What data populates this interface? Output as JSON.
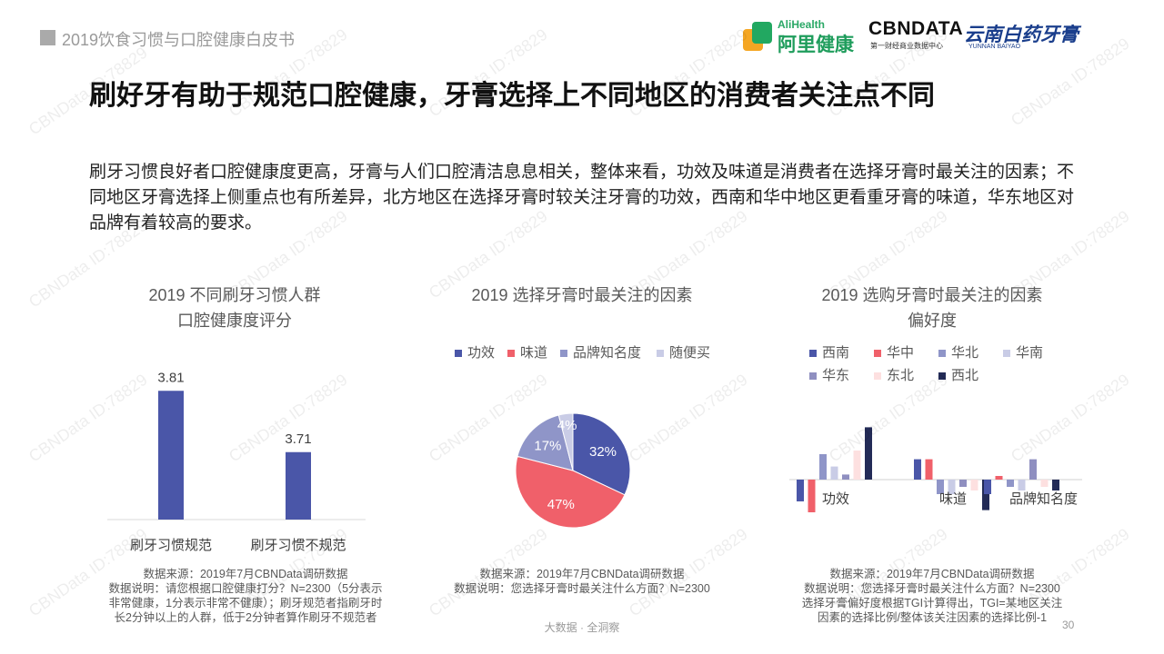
{
  "header": {
    "report_title": "2019饮食习惯与口腔健康白皮书"
  },
  "logos": {
    "alihealth_en": "AliHealth",
    "alihealth_cn": "阿里健康",
    "cbndata": "CBNDATA",
    "cbndata_sub": "第一财经商业数据中心",
    "yunnan": "云南白药牙膏",
    "yunnan_sub": "YUNNAN BAIYAO"
  },
  "slide": {
    "title": "刷好牙有助于规范口腔健康，牙膏选择上不同地区的消费者关注点不同",
    "intro": "刷牙习惯良好者口腔健康度更高，牙膏与人们口腔清洁息息相关，整体来看，功效及味道是消费者在选择牙膏时最关注的因素；不同地区牙膏选择上侧重点也有所差异，北方地区在选择牙膏时较关注牙膏的功效，西南和华中地区更看重牙膏的味道，华东地区对品牌有着较高的要求。"
  },
  "watermark": "CBNData ID:78829",
  "footer": {
    "tagline": "大数据 · 全洞察",
    "page_number": "30"
  },
  "colors": {
    "navy": "#4a56a8",
    "red": "#f0606a",
    "lavender": "#8f95c8",
    "light_lavender": "#c9cce6",
    "pink": "#fde0e0",
    "dark_navy": "#232b57"
  },
  "notes": {
    "bar": [
      "数据来源：2019年7月CBNData调研数据",
      "数据说明：请您根据口腔健康打分？N=2300（5分表示",
      "非常健康，1分表示非常不健康）；刷牙规范者指刷牙时",
      "长2分钟以上的人群，低于2分钟者算作刷牙不规范者"
    ],
    "pie": [
      "数据来源：2019年7月CBNData调研数据",
      "数据说明：您选择牙膏时最关注什么方面？N=2300"
    ],
    "tgi": [
      "数据来源：2019年7月CBNData调研数据",
      "数据说明：您选择牙膏时最关注什么方面？N=2300",
      "选择牙膏偏好度根据TGI计算得出，TGI=某地区关注",
      "因素的选择比例/整体该关注因素的选择比例-1"
    ]
  },
  "chart_data": [
    {
      "type": "bar",
      "title": "2019 不同刷牙习惯人群",
      "subtitle": "口腔健康度评分",
      "categories": [
        "刷牙习惯规范",
        "刷牙习惯不规范"
      ],
      "values": [
        3.81,
        3.71
      ],
      "value_labels": [
        "3.81",
        "3.71"
      ],
      "ylim": [
        3.6,
        3.84
      ],
      "grid": false,
      "color": "#4a56a8"
    },
    {
      "type": "pie",
      "title": "2019 选择牙膏时最关注的因素",
      "legend_position": "top",
      "slices": [
        {
          "label": "功效",
          "value": 32,
          "color": "#4a56a8"
        },
        {
          "label": "味道",
          "value": 47,
          "color": "#f0606a"
        },
        {
          "label": "品牌知名度",
          "value": 17,
          "color": "#8f95c8"
        },
        {
          "label": "随便买",
          "value": 4,
          "color": "#c9cce6"
        }
      ],
      "value_labels": [
        "32%",
        "47%",
        "17%",
        "4%"
      ]
    },
    {
      "type": "bar",
      "title": "2019 选购牙膏时最关注的因素",
      "subtitle": "偏好度",
      "legend_position": "top",
      "categories": [
        "功效",
        "味道",
        "品牌知名度"
      ],
      "ylim": [
        -0.45,
        0.75
      ],
      "grid": false,
      "series": [
        {
          "name": "西南",
          "color": "#4a56a8",
          "values": [
            -0.3,
            0.28,
            -0.2
          ]
        },
        {
          "name": "华中",
          "color": "#f0606a",
          "values": [
            -0.45,
            0.28,
            0.05
          ]
        },
        {
          "name": "华北",
          "color": "#8f95c8",
          "values": [
            0.35,
            -0.2,
            -0.1
          ]
        },
        {
          "name": "华南",
          "color": "#c9cce6",
          "values": [
            0.18,
            -0.2,
            -0.15
          ]
        },
        {
          "name": "华东",
          "color": "#8f8fc0",
          "values": [
            0.07,
            -0.1,
            0.28
          ]
        },
        {
          "name": "东北",
          "color": "#fde0e0",
          "values": [
            0.4,
            -0.15,
            -0.1
          ]
        },
        {
          "name": "西北",
          "color": "#232b57",
          "values": [
            0.72,
            -0.42,
            -0.15
          ]
        }
      ]
    }
  ]
}
